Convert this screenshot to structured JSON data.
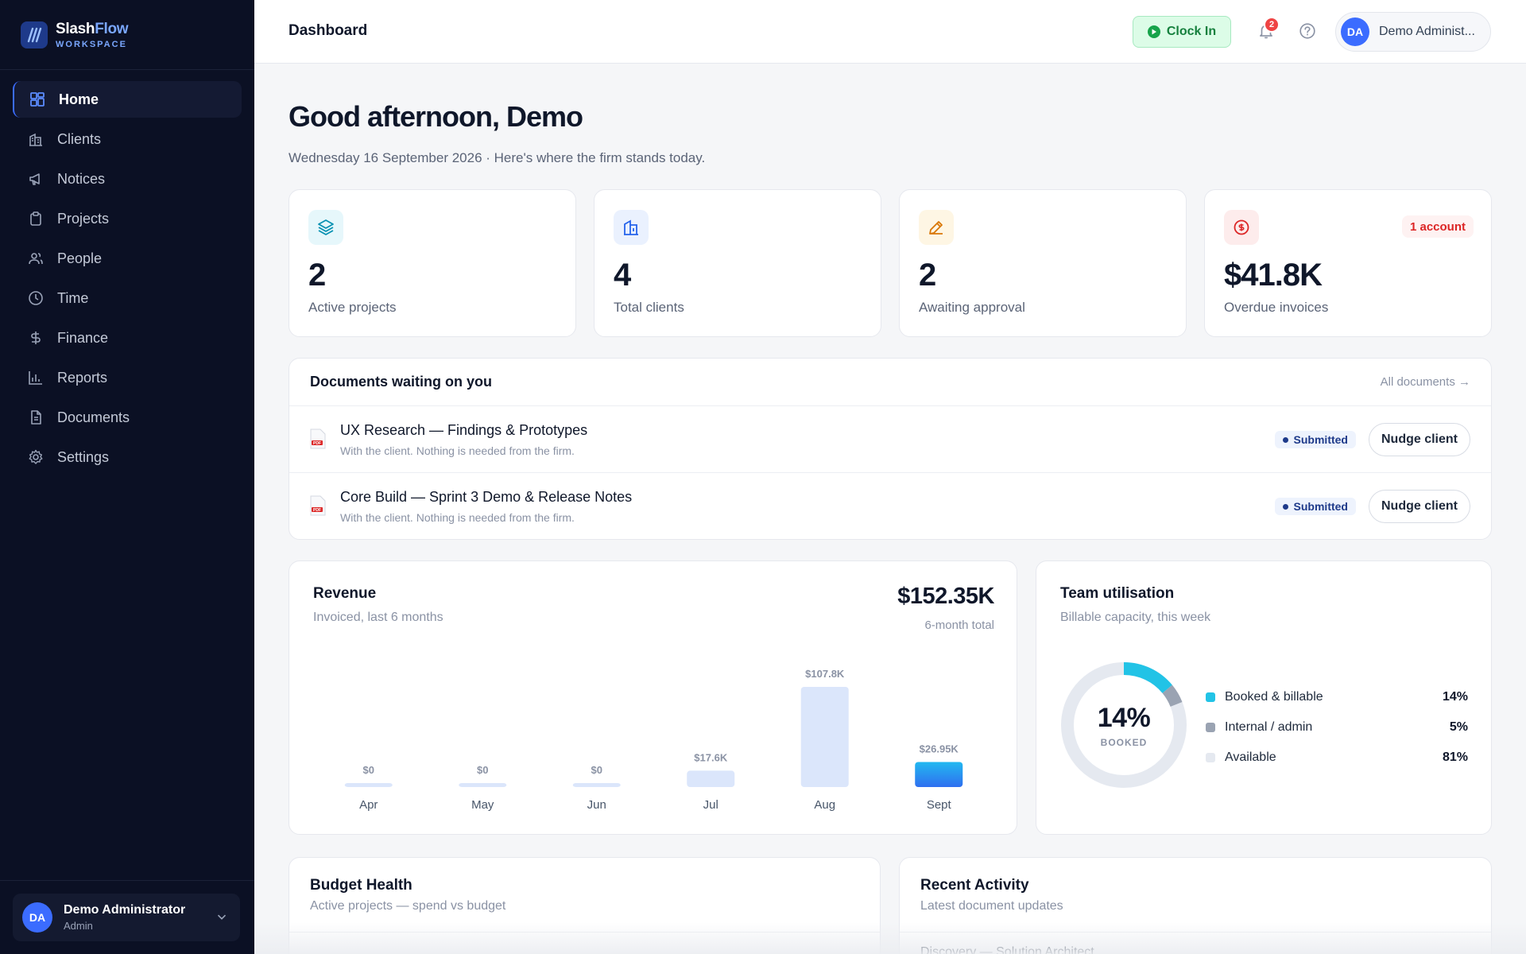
{
  "brand": {
    "name_main": "Slash",
    "name_accent": "Flow",
    "subtitle": "WORKSPACE"
  },
  "sidebar": {
    "items": [
      {
        "label": "Home",
        "icon": "grid-icon",
        "active": true
      },
      {
        "label": "Clients",
        "icon": "building-icon"
      },
      {
        "label": "Notices",
        "icon": "megaphone-icon"
      },
      {
        "label": "Projects",
        "icon": "clipboard-icon"
      },
      {
        "label": "People",
        "icon": "users-icon"
      },
      {
        "label": "Time",
        "icon": "clock-icon"
      },
      {
        "label": "Finance",
        "icon": "dollar-icon"
      },
      {
        "label": "Reports",
        "icon": "bar-chart-icon"
      },
      {
        "label": "Documents",
        "icon": "document-icon"
      },
      {
        "label": "Settings",
        "icon": "gear-icon"
      }
    ],
    "user": {
      "initials": "DA",
      "name": "Demo Administrator",
      "role": "Admin"
    }
  },
  "topbar": {
    "title": "Dashboard",
    "clock_in_label": "Clock In",
    "notification_count": "2",
    "user_initials": "DA",
    "user_name": "Demo Administ..."
  },
  "greeting": {
    "title": "Good afternoon, Demo",
    "subtitle": "Wednesday 16 September 2026 · Here's where the firm stands today."
  },
  "stats": [
    {
      "value": "2",
      "label": "Active projects",
      "icon": "layers-icon",
      "color": "#0891b2",
      "bg": "#e6f7fb"
    },
    {
      "value": "4",
      "label": "Total clients",
      "icon": "building-icon",
      "color": "#2563eb",
      "bg": "#eaf1fe"
    },
    {
      "value": "2",
      "label": "Awaiting approval",
      "icon": "pencil-icon",
      "color": "#d97706",
      "bg": "#fef6e4"
    },
    {
      "value": "$41.8K",
      "label": "Overdue invoices",
      "icon": "dollar-circle-icon",
      "color": "#dc2626",
      "bg": "#fdecec",
      "pill": "1 account"
    }
  ],
  "documents": {
    "title": "Documents waiting on you",
    "all_link": "All documents →",
    "rows": [
      {
        "title": "UX Research — Findings & Prototypes",
        "subtitle": "With the client. Nothing is needed from the firm.",
        "status": "Submitted",
        "action": "Nudge client"
      },
      {
        "title": "Core Build — Sprint 3 Demo & Release Notes",
        "subtitle": "With the client. Nothing is needed from the firm.",
        "status": "Submitted",
        "action": "Nudge client"
      }
    ]
  },
  "revenue": {
    "title": "Revenue",
    "subtitle": "Invoiced, last 6 months",
    "total": "$152.35K",
    "total_label": "6-month total"
  },
  "chart_data": {
    "type": "bar",
    "title": "Revenue",
    "categories": [
      "Apr",
      "May",
      "Jun",
      "Jul",
      "Aug",
      "Sept"
    ],
    "values": [
      0,
      0,
      0,
      17.6,
      107.8,
      26.95
    ],
    "data_labels": [
      "$0",
      "$0",
      "$0",
      "$17.6K",
      "$107.8K",
      "$26.95K"
    ],
    "unit": "$K",
    "ylim": [
      0,
      107.8
    ],
    "colors": {
      "bar": "#dbe6fb",
      "highlight_top": "#22b8f0",
      "highlight_bottom": "#2f6ff0",
      "label": "#8a92a4",
      "axis": "#475569"
    }
  },
  "utilisation": {
    "title": "Team utilisation",
    "subtitle": "Billable capacity, this week",
    "center_value": "14%",
    "center_label": "BOOKED",
    "segments": [
      {
        "name": "Booked & billable",
        "value": 14,
        "label": "14%",
        "color": "#22c3e6"
      },
      {
        "name": "Internal / admin",
        "value": 5,
        "label": "5%",
        "color": "#9aa3b2"
      },
      {
        "name": "Available",
        "value": 81,
        "label": "81%",
        "color": "#e5e9f0"
      }
    ]
  },
  "budget": {
    "title": "Budget Health",
    "subtitle": "Active projects — spend vs budget"
  },
  "activity": {
    "title": "Recent Activity",
    "subtitle": "Latest document updates",
    "peek": "Discovery — Solution Architect..."
  }
}
